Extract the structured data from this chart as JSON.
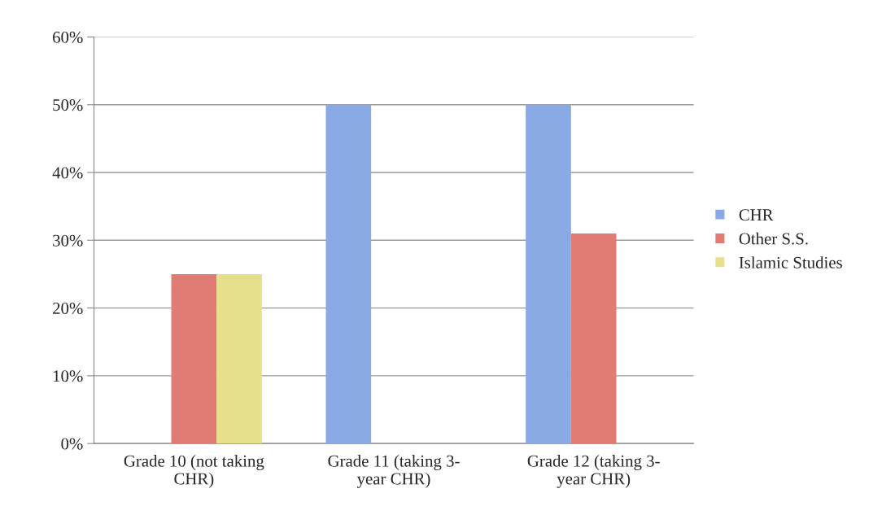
{
  "chart_data": {
    "type": "bar",
    "categories": [
      "Grade 10 (not taking\nCHR)",
      "Grade 11 (taking 3-\nyear CHR)",
      "Grade 12 (taking 3-\nyear CHR)"
    ],
    "series": [
      {
        "name": "CHR",
        "color": "#8aaae6",
        "values": [
          0,
          50,
          50
        ]
      },
      {
        "name": "Other S.S.",
        "color": "#e07c74",
        "values": [
          25,
          0,
          31
        ]
      },
      {
        "name": "Islamic Studies",
        "color": "#e6df8c",
        "values": [
          25,
          0,
          0
        ]
      }
    ],
    "ylim": [
      0,
      60
    ],
    "yticks": [
      {
        "value": 0,
        "label": "0%"
      },
      {
        "value": 10,
        "label": "10%"
      },
      {
        "value": 20,
        "label": "20%"
      },
      {
        "value": 30,
        "label": "30%"
      },
      {
        "value": 40,
        "label": "40%"
      },
      {
        "value": 50,
        "label": "50%"
      },
      {
        "value": 60,
        "label": "60%"
      }
    ],
    "grid": "y",
    "legend": "right"
  }
}
